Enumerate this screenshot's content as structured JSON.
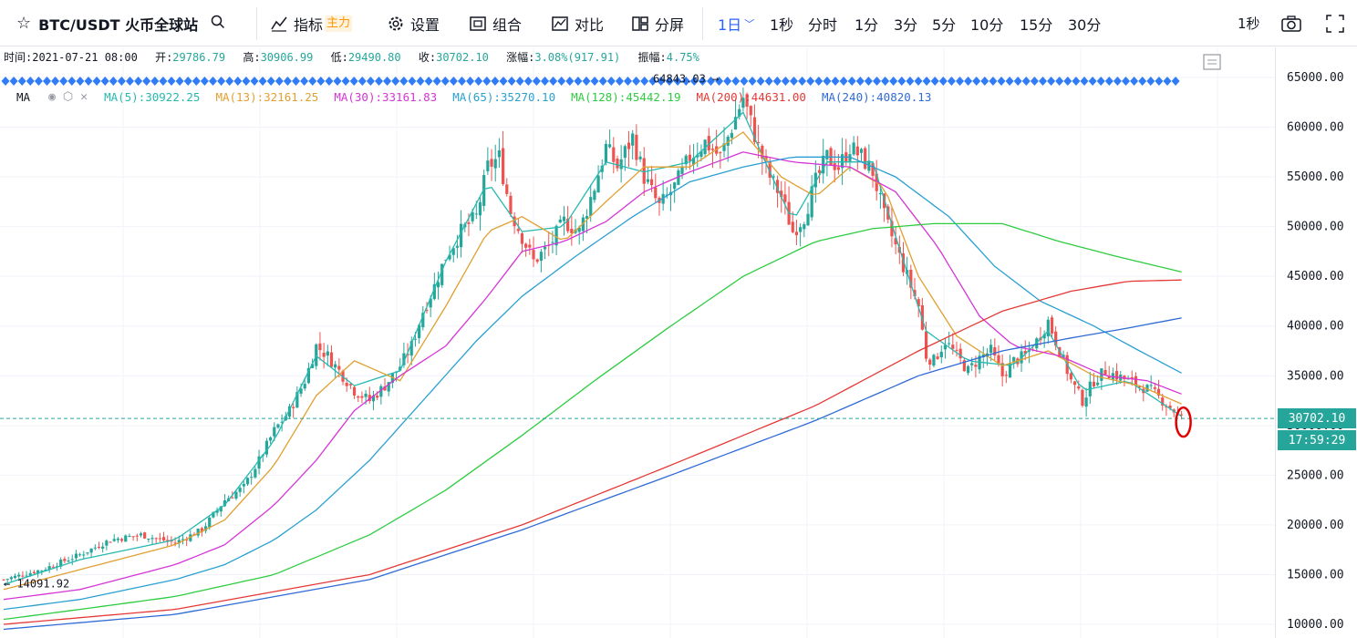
{
  "toolbar": {
    "symbol": "BTC/USDT 火币全球站",
    "indicators_label": "指标",
    "indicators_badge": "主力",
    "settings_label": "设置",
    "combine_label": "组合",
    "compare_label": "对比",
    "split_label": "分屏",
    "interval_active": "1日",
    "intervals": [
      "1秒",
      "分时",
      "1分",
      "3分",
      "5分",
      "10分",
      "15分",
      "30分"
    ],
    "right_interval": "1秒"
  },
  "info": {
    "time_label": "时间:",
    "time": "2021-07-21 08:00",
    "open_label": "开:",
    "open": "29786.79",
    "high_label": "高:",
    "high": "30906.99",
    "low_label": "低:",
    "low": "29490.80",
    "close_label": "收:",
    "close": "30702.10",
    "change_label": "涨幅:",
    "change": "3.08%(917.91)",
    "amplitude_label": "振幅:",
    "amplitude": "4.75%"
  },
  "ma_bar": {
    "label": "MA",
    "items": [
      {
        "text": "MA(5):30922.25",
        "color": "#26b9b0"
      },
      {
        "text": "MA(13):32161.25",
        "color": "#e0a030"
      },
      {
        "text": "MA(30):33161.83",
        "color": "#d535d5"
      },
      {
        "text": "MA(65):35270.10",
        "color": "#2aa0d2"
      },
      {
        "text": "MA(128):45442.19",
        "color": "#2ecc40"
      },
      {
        "text": "MA(200):44631.00",
        "color": "#e53935"
      },
      {
        "text": "MA(240):40820.13",
        "color": "#2f6bd6"
      }
    ]
  },
  "colors": {
    "up": "#26a69a",
    "down": "#ef5350",
    "last_price": "#26a69a"
  },
  "chart_data": {
    "type": "candlestick",
    "symbol": "BTC/USDT",
    "interval": "1日",
    "ylim": [
      10000,
      66000
    ],
    "y_ticks": [
      "65000.00",
      "60000.00",
      "55000.00",
      "50000.00",
      "45000.00",
      "40000.00",
      "35000.00",
      "30000.00",
      "25000.00",
      "20000.00",
      "15000.00",
      "10000.00"
    ],
    "last_price": "30702.10",
    "countdown": "17:59:29",
    "max_label": "64843.03 →",
    "max_value": 64843.03,
    "min_label": "← 14091.92",
    "min_value": 14091.92,
    "price_path": [
      [
        0,
        14500
      ],
      [
        10,
        15500
      ],
      [
        20,
        17000
      ],
      [
        28,
        18500
      ],
      [
        36,
        19000
      ],
      [
        45,
        18200
      ],
      [
        52,
        19500
      ],
      [
        58,
        22500
      ],
      [
        63,
        23800
      ],
      [
        67,
        26500
      ],
      [
        71,
        29500
      ],
      [
        75,
        31500
      ],
      [
        79,
        34500
      ],
      [
        82,
        38000
      ],
      [
        85,
        37000
      ],
      [
        88,
        35500
      ],
      [
        92,
        33500
      ],
      [
        96,
        32500
      ],
      [
        100,
        34000
      ],
      [
        104,
        36000
      ],
      [
        107,
        38000
      ],
      [
        110,
        41500
      ],
      [
        113,
        44000
      ],
      [
        116,
        47000
      ],
      [
        120,
        49500
      ],
      [
        124,
        51000
      ],
      [
        127,
        56000
      ],
      [
        130,
        57000
      ],
      [
        133,
        51500
      ],
      [
        136,
        49000
      ],
      [
        139,
        46500
      ],
      [
        143,
        48000
      ],
      [
        147,
        50500
      ],
      [
        151,
        49500
      ],
      [
        155,
        54000
      ],
      [
        158,
        58000
      ],
      [
        161,
        56000
      ],
      [
        165,
        59000
      ],
      [
        168,
        55000
      ],
      [
        172,
        52000
      ],
      [
        176,
        54000
      ],
      [
        180,
        57000
      ],
      [
        184,
        58500
      ],
      [
        188,
        57000
      ],
      [
        191,
        60000
      ],
      [
        194,
        63000
      ],
      [
        196,
        60500
      ],
      [
        198,
        58000
      ],
      [
        201,
        55000
      ],
      [
        204,
        53000
      ],
      [
        207,
        49500
      ],
      [
        210,
        51000
      ],
      [
        213,
        54500
      ],
      [
        216,
        57000
      ],
      [
        219,
        56000
      ],
      [
        222,
        58000
      ],
      [
        225,
        57000
      ],
      [
        228,
        55500
      ],
      [
        231,
        51000
      ],
      [
        234,
        48000
      ],
      [
        237,
        45000
      ],
      [
        240,
        42000
      ],
      [
        242,
        37000
      ],
      [
        244,
        36500
      ],
      [
        247,
        38500
      ],
      [
        250,
        37000
      ],
      [
        253,
        35500
      ],
      [
        256,
        36800
      ],
      [
        259,
        37500
      ],
      [
        262,
        35000
      ],
      [
        265,
        36500
      ],
      [
        268,
        37000
      ],
      [
        271,
        38500
      ],
      [
        274,
        40500
      ],
      [
        277,
        37500
      ],
      [
        280,
        34500
      ],
      [
        283,
        32500
      ],
      [
        286,
        34500
      ],
      [
        289,
        35500
      ],
      [
        292,
        35000
      ],
      [
        295,
        34500
      ],
      [
        298,
        34000
      ],
      [
        301,
        33500
      ],
      [
        304,
        32500
      ],
      [
        307,
        31500
      ],
      [
        309,
        30700
      ]
    ],
    "series": [
      {
        "name": "MA(5)",
        "color": "#26b9b0",
        "points": [
          [
            0,
            14000
          ],
          [
            20,
            16500
          ],
          [
            45,
            18500
          ],
          [
            58,
            22000
          ],
          [
            71,
            28500
          ],
          [
            82,
            37000
          ],
          [
            92,
            34000
          ],
          [
            104,
            35500
          ],
          [
            116,
            46500
          ],
          [
            127,
            54500
          ],
          [
            136,
            49500
          ],
          [
            147,
            50000
          ],
          [
            158,
            56500
          ],
          [
            168,
            55500
          ],
          [
            180,
            56500
          ],
          [
            194,
            61500
          ],
          [
            201,
            55500
          ],
          [
            207,
            50500
          ],
          [
            216,
            56500
          ],
          [
            228,
            56500
          ],
          [
            234,
            49000
          ],
          [
            242,
            39500
          ],
          [
            253,
            36500
          ],
          [
            265,
            36000
          ],
          [
            274,
            39500
          ],
          [
            283,
            33500
          ],
          [
            295,
            34500
          ],
          [
            309,
            30922
          ]
        ]
      },
      {
        "name": "MA(13)",
        "color": "#e0a030",
        "points": [
          [
            0,
            13500
          ],
          [
            20,
            15500
          ],
          [
            45,
            18000
          ],
          [
            58,
            20500
          ],
          [
            71,
            26000
          ],
          [
            82,
            33000
          ],
          [
            92,
            36500
          ],
          [
            104,
            34500
          ],
          [
            116,
            42000
          ],
          [
            127,
            49500
          ],
          [
            136,
            51000
          ],
          [
            147,
            48500
          ],
          [
            158,
            52500
          ],
          [
            168,
            56000
          ],
          [
            180,
            56000
          ],
          [
            194,
            59500
          ],
          [
            204,
            55000
          ],
          [
            213,
            53000
          ],
          [
            222,
            56000
          ],
          [
            231,
            54000
          ],
          [
            240,
            45000
          ],
          [
            250,
            39000
          ],
          [
            262,
            36000
          ],
          [
            274,
            37500
          ],
          [
            286,
            35000
          ],
          [
            298,
            34000
          ],
          [
            309,
            32161
          ]
        ]
      },
      {
        "name": "MA(30)",
        "color": "#d535d5",
        "points": [
          [
            0,
            12500
          ],
          [
            20,
            13500
          ],
          [
            45,
            16000
          ],
          [
            58,
            18000
          ],
          [
            71,
            22000
          ],
          [
            82,
            26500
          ],
          [
            92,
            31500
          ],
          [
            104,
            35000
          ],
          [
            116,
            38000
          ],
          [
            127,
            43000
          ],
          [
            136,
            47500
          ],
          [
            147,
            48500
          ],
          [
            158,
            50500
          ],
          [
            168,
            53500
          ],
          [
            180,
            55500
          ],
          [
            194,
            57500
          ],
          [
            207,
            56500
          ],
          [
            222,
            56000
          ],
          [
            234,
            53500
          ],
          [
            245,
            48000
          ],
          [
            256,
            41000
          ],
          [
            265,
            38000
          ],
          [
            277,
            37000
          ],
          [
            289,
            35000
          ],
          [
            300,
            34500
          ],
          [
            309,
            33161
          ]
        ]
      },
      {
        "name": "MA(65)",
        "color": "#2aa0d2",
        "points": [
          [
            0,
            11500
          ],
          [
            20,
            12500
          ],
          [
            45,
            14500
          ],
          [
            58,
            16000
          ],
          [
            71,
            18500
          ],
          [
            82,
            21500
          ],
          [
            96,
            26500
          ],
          [
            110,
            32500
          ],
          [
            124,
            38500
          ],
          [
            136,
            43000
          ],
          [
            150,
            47000
          ],
          [
            165,
            51000
          ],
          [
            180,
            54500
          ],
          [
            194,
            56000
          ],
          [
            207,
            57000
          ],
          [
            222,
            57000
          ],
          [
            234,
            55000
          ],
          [
            248,
            51000
          ],
          [
            260,
            46000
          ],
          [
            272,
            42500
          ],
          [
            286,
            40000
          ],
          [
            298,
            37500
          ],
          [
            309,
            35270
          ]
        ]
      },
      {
        "name": "MA(128)",
        "color": "#2ecc40",
        "points": [
          [
            0,
            10500
          ],
          [
            20,
            11500
          ],
          [
            45,
            12800
          ],
          [
            71,
            15000
          ],
          [
            96,
            19000
          ],
          [
            116,
            23500
          ],
          [
            136,
            29000
          ],
          [
            155,
            34500
          ],
          [
            175,
            40000
          ],
          [
            194,
            45000
          ],
          [
            213,
            48500
          ],
          [
            228,
            49800
          ],
          [
            244,
            50300
          ],
          [
            262,
            50300
          ],
          [
            277,
            48500
          ],
          [
            292,
            47000
          ],
          [
            309,
            45442
          ]
        ]
      },
      {
        "name": "MA(200)",
        "color": "#e53935",
        "points": [
          [
            0,
            10000
          ],
          [
            45,
            11500
          ],
          [
            96,
            15000
          ],
          [
            136,
            20000
          ],
          [
            175,
            26000
          ],
          [
            213,
            32000
          ],
          [
            240,
            37500
          ],
          [
            262,
            41500
          ],
          [
            280,
            43500
          ],
          [
            295,
            44500
          ],
          [
            309,
            44631
          ]
        ]
      },
      {
        "name": "MA(240)",
        "color": "#2f6bd6",
        "points": [
          [
            0,
            9500
          ],
          [
            45,
            11000
          ],
          [
            96,
            14500
          ],
          [
            136,
            19500
          ],
          [
            175,
            25000
          ],
          [
            213,
            30500
          ],
          [
            240,
            35000
          ],
          [
            262,
            37500
          ],
          [
            280,
            38800
          ],
          [
            295,
            39800
          ],
          [
            309,
            40820
          ]
        ]
      }
    ]
  }
}
